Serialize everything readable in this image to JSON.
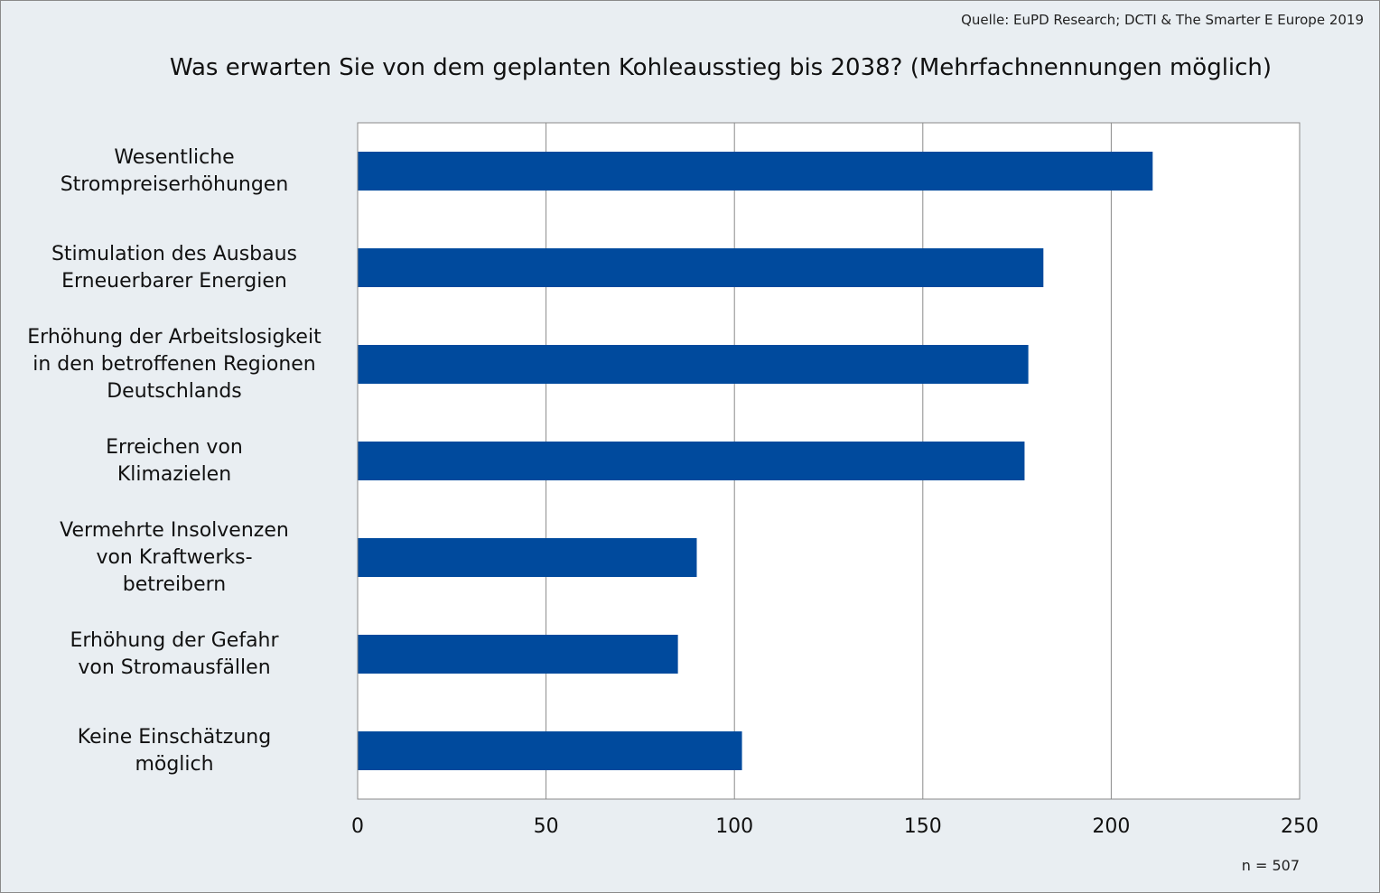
{
  "source": "Quelle: EuPD Research; DCTI & The Smarter E Europe 2019",
  "note": "n = 507",
  "chart_data": {
    "type": "bar",
    "orientation": "horizontal",
    "title": "Was erwarten Sie von dem geplanten Kohleausstieg bis 2038? (Mehrfachnennungen möglich)",
    "xlabel": "",
    "ylabel": "",
    "categories": [
      "Wesentliche Strompreiserhöhungen",
      "Stimulation des Ausbaus Erneuerbarer Energien",
      "Erhöhung der Arbeitslosigkeit in den betroffenen Regionen Deutschlands",
      "Erreichen von Klimazielen",
      "Vermehrte Insolvenzen von Kraftwerks-betreibern",
      "Erhöhung der Gefahr von Stromausfällen",
      "Keine Einschätzung möglich"
    ],
    "label_lines": [
      [
        "Wesentliche",
        "Strompreiserhöhungen"
      ],
      [
        "Stimulation des Ausbaus",
        "Erneuerbarer Energien"
      ],
      [
        "Erhöhung der Arbeitslosigkeit",
        "in den betroffenen Regionen",
        "Deutschlands"
      ],
      [
        "Erreichen von",
        "Klimazielen"
      ],
      [
        "Vermehrte Insolvenzen",
        "von Kraftwerks-",
        "betreibern"
      ],
      [
        "Erhöhung der Gefahr",
        "von Stromausfällen"
      ],
      [
        "Keine Einschätzung",
        "möglich"
      ]
    ],
    "values": [
      211,
      182,
      178,
      177,
      90,
      85,
      102
    ],
    "xlim": [
      0,
      250
    ],
    "ticks": [
      "0",
      "50",
      "100",
      "150",
      "200",
      "250"
    ],
    "grid": true,
    "legend": "none",
    "bar_color": "#004a9d"
  }
}
